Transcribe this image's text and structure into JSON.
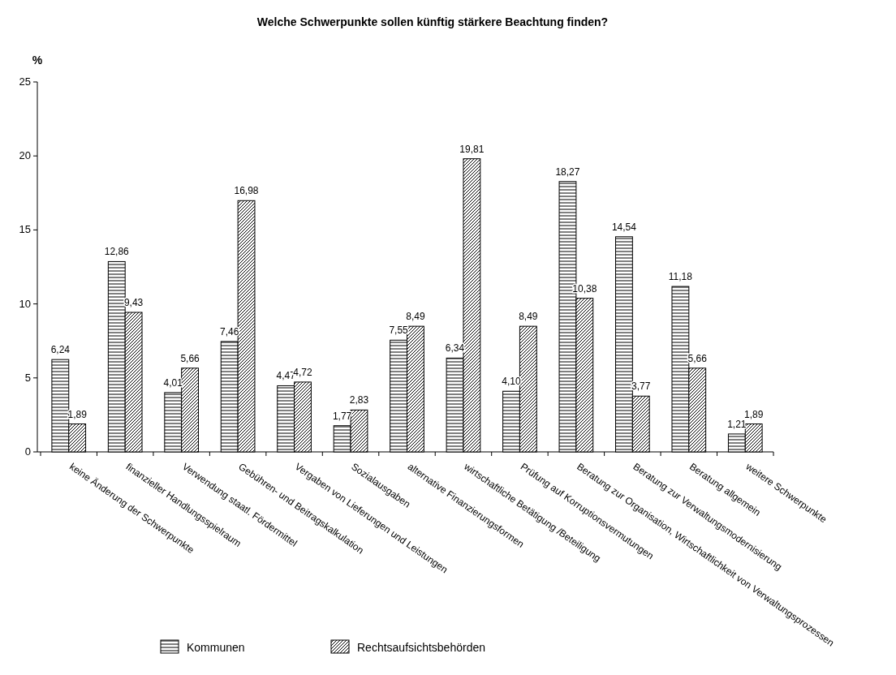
{
  "chart_data": {
    "type": "bar",
    "title": "Welche Schwerpunkte sollen künftig stärkere Beachtung finden?",
    "ylabel": "%",
    "categories": [
      "keine Änderung der Schwerpunkte",
      "finanzieller Handlungsspielraum",
      "Verwendung staatl. Fördermittel",
      "Gebühren- und Beitragskalkulation",
      "Vergaben von Lieferungen und Leistungen",
      "Sozialausgaben",
      "alternative Finanzierungsformen",
      "wirtschaftliche Betätigung /Beteiligung",
      "Prüfung auf Korruptionsvermutungen",
      "Beratung zur Organisation, Wirtschaftlichkeit von Verwaltungsprozessen",
      "Beratung zur Verwaltungsmodernisierung",
      "Beratung allgemein",
      "weitere Schwerpunkte"
    ],
    "series": [
      {
        "name": "Kommunen",
        "color": "#000000",
        "values": [
          6.24,
          12.86,
          4.01,
          7.46,
          4.47,
          1.77,
          7.55,
          6.34,
          4.1,
          18.27,
          14.54,
          11.18,
          1.21
        ],
        "value_labels": [
          "6,24",
          "12,86",
          "4,01",
          "7,46",
          "4,47",
          "1,77",
          "7,55",
          "6,34",
          "4,10",
          "18,27",
          "14,54",
          "11,18",
          "1,21"
        ]
      },
      {
        "name": "Rechtsaufsichtsbehörden",
        "color": "#000000",
        "values": [
          1.89,
          9.43,
          5.66,
          16.98,
          4.72,
          2.83,
          8.49,
          19.81,
          8.49,
          10.38,
          3.77,
          5.66,
          1.89
        ],
        "value_labels": [
          "1,89",
          "9,43",
          "5,66",
          "16,98",
          "4,72",
          "2,83",
          "8,49",
          "19,81",
          "8,49",
          "10,38",
          "3,77",
          "5,66",
          "1,89"
        ]
      }
    ],
    "ylim": [
      0,
      25
    ],
    "yticks": [
      0,
      5,
      10,
      15,
      20,
      25
    ],
    "legend": "bottom"
  }
}
